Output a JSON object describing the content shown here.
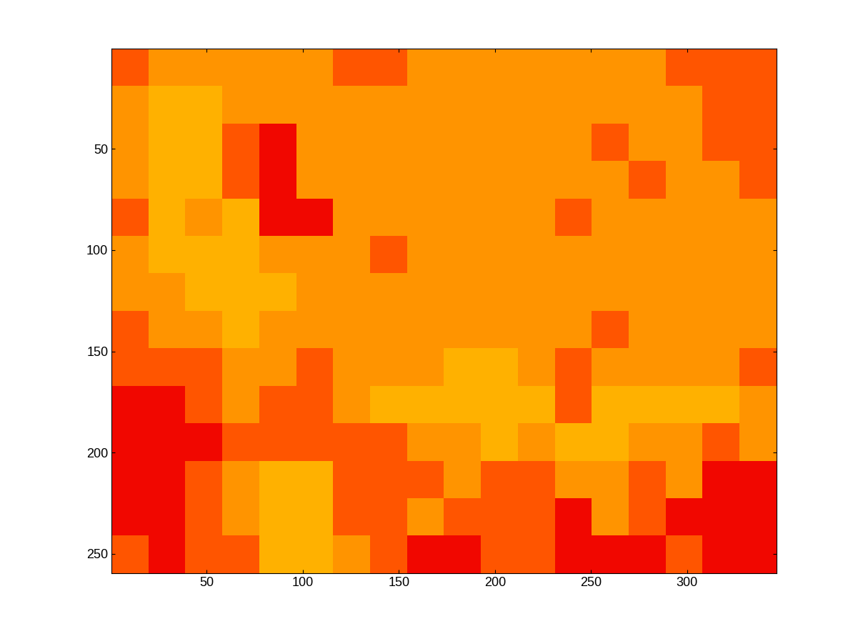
{
  "chart_data": {
    "type": "heatmap",
    "xlim": [
      0.5,
      346.5
    ],
    "ylim": [
      259.5,
      0.5
    ],
    "xticks": [
      50,
      100,
      150,
      200,
      250,
      300
    ],
    "yticks": [
      50,
      100,
      150,
      200,
      250
    ],
    "color_range": [
      0,
      1
    ],
    "cells": [
      [
        0.82,
        0.75,
        0.75,
        0.75,
        0.75,
        0.75,
        0.82,
        0.82,
        0.75,
        0.75,
        0.75,
        0.75,
        0.75,
        0.75,
        0.75,
        0.82,
        0.82,
        0.82
      ],
      [
        0.75,
        0.72,
        0.72,
        0.75,
        0.75,
        0.75,
        0.75,
        0.75,
        0.75,
        0.75,
        0.75,
        0.75,
        0.75,
        0.75,
        0.75,
        0.75,
        0.82,
        0.82
      ],
      [
        0.75,
        0.72,
        0.72,
        0.82,
        0.9,
        0.75,
        0.75,
        0.75,
        0.75,
        0.75,
        0.75,
        0.75,
        0.75,
        0.82,
        0.75,
        0.75,
        0.82,
        0.82
      ],
      [
        0.75,
        0.72,
        0.72,
        0.82,
        0.9,
        0.75,
        0.75,
        0.75,
        0.75,
        0.75,
        0.75,
        0.75,
        0.75,
        0.75,
        0.82,
        0.75,
        0.75,
        0.82
      ],
      [
        0.82,
        0.72,
        0.75,
        0.72,
        0.9,
        0.9,
        0.75,
        0.75,
        0.75,
        0.75,
        0.75,
        0.75,
        0.82,
        0.75,
        0.75,
        0.75,
        0.75,
        0.75
      ],
      [
        0.75,
        0.72,
        0.72,
        0.72,
        0.75,
        0.75,
        0.75,
        0.82,
        0.75,
        0.75,
        0.75,
        0.75,
        0.75,
        0.75,
        0.75,
        0.75,
        0.75,
        0.75
      ],
      [
        0.75,
        0.75,
        0.72,
        0.72,
        0.72,
        0.75,
        0.75,
        0.75,
        0.75,
        0.75,
        0.75,
        0.75,
        0.75,
        0.75,
        0.75,
        0.75,
        0.75,
        0.75
      ],
      [
        0.82,
        0.75,
        0.75,
        0.72,
        0.75,
        0.75,
        0.75,
        0.75,
        0.75,
        0.75,
        0.75,
        0.75,
        0.75,
        0.82,
        0.75,
        0.75,
        0.75,
        0.75
      ],
      [
        0.82,
        0.82,
        0.82,
        0.75,
        0.75,
        0.82,
        0.75,
        0.75,
        0.75,
        0.72,
        0.72,
        0.75,
        0.82,
        0.75,
        0.75,
        0.75,
        0.75,
        0.82
      ],
      [
        0.9,
        0.9,
        0.82,
        0.75,
        0.82,
        0.82,
        0.75,
        0.72,
        0.72,
        0.72,
        0.72,
        0.72,
        0.82,
        0.72,
        0.72,
        0.72,
        0.72,
        0.75
      ],
      [
        0.9,
        0.9,
        0.9,
        0.82,
        0.82,
        0.82,
        0.82,
        0.82,
        0.75,
        0.75,
        0.72,
        0.75,
        0.72,
        0.72,
        0.75,
        0.75,
        0.82,
        0.75
      ],
      [
        0.9,
        0.9,
        0.82,
        0.75,
        0.72,
        0.72,
        0.82,
        0.82,
        0.82,
        0.75,
        0.82,
        0.82,
        0.75,
        0.75,
        0.82,
        0.75,
        0.9,
        0.9
      ],
      [
        0.9,
        0.9,
        0.82,
        0.75,
        0.72,
        0.72,
        0.82,
        0.82,
        0.75,
        0.82,
        0.82,
        0.82,
        0.9,
        0.75,
        0.82,
        0.9,
        0.9,
        0.9
      ],
      [
        0.82,
        0.9,
        0.82,
        0.82,
        0.72,
        0.72,
        0.75,
        0.82,
        0.9,
        0.9,
        0.82,
        0.82,
        0.9,
        0.9,
        0.9,
        0.82,
        0.9,
        0.9
      ]
    ]
  }
}
